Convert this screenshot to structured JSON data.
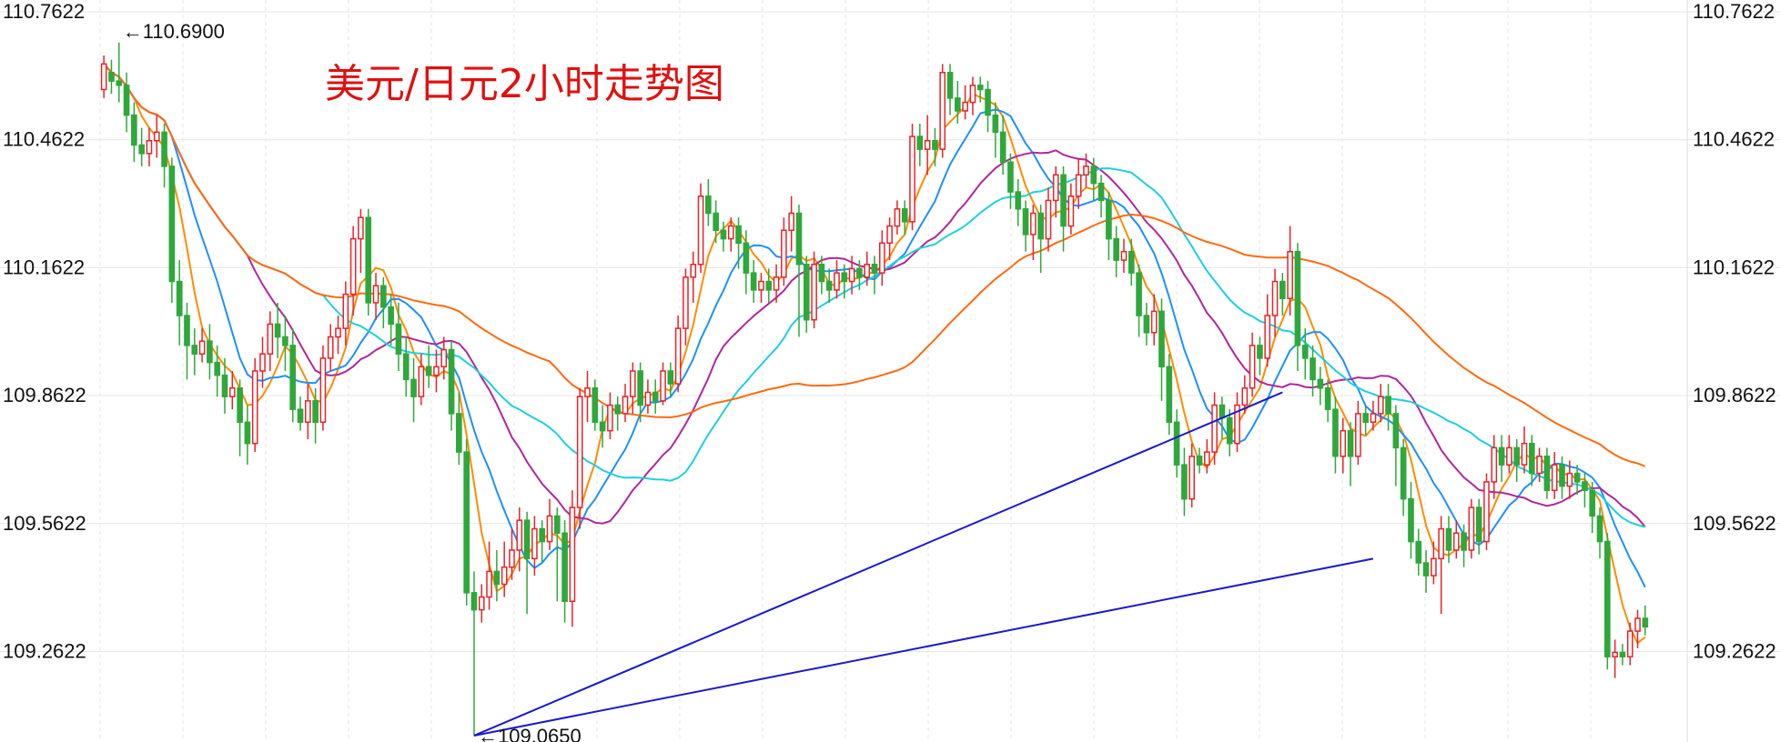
{
  "chart_data": {
    "type": "candlestick",
    "title": "美元/日元2小时走势图",
    "ylim": [
      109.05,
      110.79
    ],
    "y_ticks": [
      "110.7622",
      "110.4622",
      "110.1622",
      "109.8622",
      "109.5622",
      "109.2622"
    ],
    "y_tick_values": [
      110.7622,
      110.4622,
      110.1622,
      109.8622,
      109.5622,
      109.2622
    ],
    "grid": true,
    "annotations": [
      {
        "name": "high",
        "text": "←110.6900",
        "candle": 2,
        "price": 110.69
      },
      {
        "name": "low",
        "text": "←109.0650",
        "candle": 49,
        "price": 109.065
      }
    ],
    "trendlines": [
      {
        "color": "#1a1acc",
        "from": [
          49,
          109.065
        ],
        "to": [
          156,
          109.87
        ]
      },
      {
        "color": "#1a1acc",
        "from": [
          49,
          109.065
        ],
        "to": [
          168,
          109.48
        ]
      }
    ],
    "moving_averages": [
      {
        "period": 5,
        "color": "#ff8c00"
      },
      {
        "period": 10,
        "color": "#1e90ff"
      },
      {
        "period": 20,
        "color": "#b0279b"
      },
      {
        "period": 30,
        "color": "#1fcfdf"
      },
      {
        "period": 60,
        "color": "#ff6a10"
      }
    ],
    "colors": {
      "up": "#e8222a",
      "down": "#2ea83a",
      "grid": "#e6e6e6"
    },
    "candles": [
      [
        110.58,
        110.64,
        110.66,
        110.56
      ],
      [
        110.62,
        110.6,
        110.65,
        110.57
      ],
      [
        110.6,
        110.59,
        110.69,
        110.55
      ],
      [
        110.59,
        110.52,
        110.62,
        110.48
      ],
      [
        110.52,
        110.45,
        110.55,
        110.41
      ],
      [
        110.45,
        110.43,
        110.49,
        110.4
      ],
      [
        110.43,
        110.46,
        110.49,
        110.4
      ],
      [
        110.46,
        110.48,
        110.52,
        110.42
      ],
      [
        110.48,
        110.4,
        110.5,
        110.35
      ],
      [
        110.4,
        110.13,
        110.42,
        110.08
      ],
      [
        110.13,
        110.05,
        110.18,
        109.98
      ],
      [
        110.05,
        109.98,
        110.08,
        109.9
      ],
      [
        109.98,
        109.96,
        110.02,
        109.91
      ],
      [
        109.96,
        109.99,
        110.02,
        109.94
      ],
      [
        109.99,
        109.94,
        110.03,
        109.9
      ],
      [
        109.94,
        109.91,
        109.98,
        109.86
      ],
      [
        109.91,
        109.86,
        109.95,
        109.82
      ],
      [
        109.86,
        109.88,
        109.92,
        109.83
      ],
      [
        109.88,
        109.8,
        109.9,
        109.72
      ],
      [
        109.8,
        109.75,
        109.84,
        109.7
      ],
      [
        109.75,
        109.92,
        109.95,
        109.73
      ],
      [
        109.92,
        109.96,
        110.0,
        109.88
      ],
      [
        109.96,
        110.03,
        110.06,
        109.92
      ],
      [
        110.03,
        110.0,
        110.08,
        109.95
      ],
      [
        110.0,
        109.98,
        110.05,
        109.92
      ],
      [
        109.98,
        109.83,
        110.02,
        109.8
      ],
      [
        109.83,
        109.8,
        109.86,
        109.78
      ],
      [
        109.8,
        109.85,
        109.89,
        109.76
      ],
      [
        109.85,
        109.8,
        109.88,
        109.75
      ],
      [
        109.8,
        109.95,
        109.98,
        109.78
      ],
      [
        109.95,
        110.0,
        110.03,
        109.92
      ],
      [
        110.0,
        110.02,
        110.05,
        109.96
      ],
      [
        110.02,
        110.1,
        110.13,
        109.98
      ],
      [
        110.1,
        110.23,
        110.26,
        110.05
      ],
      [
        110.23,
        110.28,
        110.3,
        110.15
      ],
      [
        110.28,
        110.08,
        110.3,
        110.05
      ],
      [
        110.08,
        110.12,
        110.15,
        110.04
      ],
      [
        110.12,
        110.07,
        110.14,
        110.02
      ],
      [
        110.07,
        110.03,
        110.1,
        109.98
      ],
      [
        110.03,
        109.96,
        110.08,
        109.92
      ],
      [
        109.96,
        109.9,
        110.0,
        109.86
      ],
      [
        109.9,
        109.86,
        109.95,
        109.8
      ],
      [
        109.86,
        109.93,
        109.96,
        109.84
      ],
      [
        109.93,
        109.91,
        109.98,
        109.88
      ],
      [
        109.91,
        109.93,
        109.97,
        109.87
      ],
      [
        109.93,
        109.97,
        110.0,
        109.9
      ],
      [
        109.97,
        109.82,
        109.99,
        109.78
      ],
      [
        109.82,
        109.73,
        109.87,
        109.7
      ],
      [
        109.73,
        109.4,
        109.76,
        109.37
      ],
      [
        109.4,
        109.36,
        109.45,
        109.065
      ],
      [
        109.36,
        109.39,
        109.42,
        109.33
      ],
      [
        109.39,
        109.45,
        109.52,
        109.36
      ],
      [
        109.45,
        109.42,
        109.5,
        109.38
      ],
      [
        109.42,
        109.46,
        109.52,
        109.39
      ],
      [
        109.46,
        109.5,
        109.55,
        109.43
      ],
      [
        109.5,
        109.57,
        109.6,
        109.45
      ],
      [
        109.57,
        109.48,
        109.59,
        109.35
      ],
      [
        109.48,
        109.55,
        109.58,
        109.44
      ],
      [
        109.55,
        109.52,
        109.57,
        109.47
      ],
      [
        109.52,
        109.58,
        109.62,
        109.5
      ],
      [
        109.58,
        109.54,
        109.6,
        109.38
      ],
      [
        109.54,
        109.38,
        109.57,
        109.33
      ],
      [
        109.38,
        109.6,
        109.64,
        109.32
      ],
      [
        109.6,
        109.86,
        109.88,
        109.55
      ],
      [
        109.86,
        109.88,
        109.92,
        109.8
      ],
      [
        109.88,
        109.8,
        109.9,
        109.78
      ],
      [
        109.8,
        109.78,
        109.84,
        109.74
      ],
      [
        109.78,
        109.84,
        109.87,
        109.76
      ],
      [
        109.84,
        109.82,
        109.86,
        109.78
      ],
      [
        109.82,
        109.86,
        109.89,
        109.8
      ],
      [
        109.86,
        109.92,
        109.94,
        109.82
      ],
      [
        109.92,
        109.84,
        109.94,
        109.8
      ],
      [
        109.84,
        109.87,
        109.9,
        109.82
      ],
      [
        109.87,
        109.85,
        109.9,
        109.82
      ],
      [
        109.85,
        109.92,
        109.94,
        109.84
      ],
      [
        109.92,
        109.89,
        109.94,
        109.86
      ],
      [
        109.89,
        110.02,
        110.05,
        109.87
      ],
      [
        110.02,
        110.14,
        110.16,
        109.98
      ],
      [
        110.14,
        110.17,
        110.2,
        110.08
      ],
      [
        110.17,
        110.33,
        110.36,
        110.15
      ],
      [
        110.33,
        110.29,
        110.37,
        110.26
      ],
      [
        110.29,
        110.25,
        110.32,
        110.22
      ],
      [
        110.25,
        110.23,
        110.27,
        110.2
      ],
      [
        110.23,
        110.26,
        110.28,
        110.2
      ],
      [
        110.26,
        110.22,
        110.28,
        110.16
      ],
      [
        110.22,
        110.15,
        110.25,
        110.1
      ],
      [
        110.15,
        110.11,
        110.18,
        110.08
      ],
      [
        110.11,
        110.13,
        110.15,
        110.08
      ],
      [
        110.13,
        110.11,
        110.16,
        110.08
      ],
      [
        110.11,
        110.14,
        110.17,
        110.08
      ],
      [
        110.14,
        110.25,
        110.28,
        110.12
      ],
      [
        110.25,
        110.29,
        110.33,
        110.2
      ],
      [
        110.29,
        110.17,
        110.31,
        110.0
      ],
      [
        110.17,
        110.04,
        110.19,
        110.01
      ],
      [
        110.04,
        110.17,
        110.2,
        110.02
      ],
      [
        110.17,
        110.13,
        110.19,
        110.1
      ],
      [
        110.13,
        110.11,
        110.16,
        110.08
      ],
      [
        110.11,
        110.15,
        110.18,
        110.09
      ],
      [
        110.15,
        110.13,
        110.17,
        110.09
      ],
      [
        110.13,
        110.16,
        110.19,
        110.1
      ],
      [
        110.16,
        110.14,
        110.18,
        110.11
      ],
      [
        110.14,
        110.17,
        110.2,
        110.12
      ],
      [
        110.17,
        110.15,
        110.19,
        110.1
      ],
      [
        110.15,
        110.22,
        110.25,
        110.12
      ],
      [
        110.22,
        110.26,
        110.28,
        110.18
      ],
      [
        110.26,
        110.3,
        110.32,
        110.24
      ],
      [
        110.3,
        110.27,
        110.32,
        110.24
      ],
      [
        110.27,
        110.47,
        110.5,
        110.25
      ],
      [
        110.47,
        110.44,
        110.5,
        110.4
      ],
      [
        110.44,
        110.46,
        110.52,
        110.38
      ],
      [
        110.46,
        110.44,
        110.49,
        110.4
      ],
      [
        110.44,
        110.62,
        110.64,
        110.42
      ],
      [
        110.62,
        110.56,
        110.64,
        110.52
      ],
      [
        110.56,
        110.53,
        110.6,
        110.5
      ],
      [
        110.53,
        110.55,
        110.59,
        110.51
      ],
      [
        110.55,
        110.59,
        110.61,
        110.52
      ],
      [
        110.59,
        110.58,
        110.61,
        110.55
      ],
      [
        110.58,
        110.52,
        110.6,
        110.48
      ],
      [
        110.52,
        110.48,
        110.55,
        110.42
      ],
      [
        110.48,
        110.41,
        110.52,
        110.38
      ],
      [
        110.41,
        110.34,
        110.43,
        110.3
      ],
      [
        110.34,
        110.3,
        110.37,
        110.26
      ],
      [
        110.3,
        110.24,
        110.32,
        110.2
      ],
      [
        110.24,
        110.29,
        110.31,
        110.18
      ],
      [
        110.29,
        110.23,
        110.31,
        110.15
      ],
      [
        110.23,
        110.32,
        110.35,
        110.2
      ],
      [
        110.32,
        110.38,
        110.4,
        110.28
      ],
      [
        110.38,
        110.26,
        110.4,
        110.2
      ],
      [
        110.26,
        110.33,
        110.36,
        110.24
      ],
      [
        110.33,
        110.38,
        110.42,
        110.3
      ],
      [
        110.38,
        110.4,
        110.43,
        110.35
      ],
      [
        110.4,
        110.36,
        110.42,
        110.32
      ],
      [
        110.36,
        110.32,
        110.38,
        110.28
      ],
      [
        110.32,
        110.23,
        110.34,
        110.18
      ],
      [
        110.23,
        110.18,
        110.26,
        110.14
      ],
      [
        110.18,
        110.2,
        110.23,
        110.15
      ],
      [
        110.2,
        110.15,
        110.23,
        110.12
      ],
      [
        110.15,
        110.05,
        110.17,
        110.0
      ],
      [
        110.05,
        110.01,
        110.08,
        109.98
      ],
      [
        110.01,
        110.06,
        110.1,
        109.98
      ],
      [
        110.06,
        109.93,
        110.09,
        109.85
      ],
      [
        109.93,
        109.8,
        109.96,
        109.77
      ],
      [
        109.8,
        109.7,
        109.83,
        109.67
      ],
      [
        109.7,
        109.62,
        109.74,
        109.58
      ],
      [
        109.62,
        109.72,
        109.75,
        109.6
      ],
      [
        109.72,
        109.7,
        109.74,
        109.68
      ],
      [
        109.7,
        109.73,
        109.76,
        109.68
      ],
      [
        109.73,
        109.84,
        109.87,
        109.7
      ],
      [
        109.84,
        109.81,
        109.86,
        109.76
      ],
      [
        109.81,
        109.75,
        109.83,
        109.72
      ],
      [
        109.75,
        109.84,
        109.87,
        109.73
      ],
      [
        109.84,
        109.88,
        109.91,
        109.82
      ],
      [
        109.88,
        109.98,
        110.01,
        109.86
      ],
      [
        109.98,
        109.95,
        110.0,
        109.91
      ],
      [
        109.95,
        110.05,
        110.1,
        109.93
      ],
      [
        110.05,
        110.13,
        110.16,
        110.0
      ],
      [
        110.13,
        110.09,
        110.15,
        110.05
      ],
      [
        110.09,
        110.2,
        110.26,
        110.05
      ],
      [
        110.2,
        109.98,
        110.22,
        109.92
      ],
      [
        109.98,
        109.95,
        110.02,
        109.9
      ],
      [
        109.95,
        109.9,
        109.98,
        109.86
      ],
      [
        109.9,
        109.88,
        109.93,
        109.84
      ],
      [
        109.88,
        109.83,
        109.9,
        109.8
      ],
      [
        109.83,
        109.72,
        109.86,
        109.68
      ],
      [
        109.72,
        109.78,
        109.81,
        109.68
      ],
      [
        109.78,
        109.72,
        109.8,
        109.65
      ],
      [
        109.72,
        109.82,
        109.85,
        109.7
      ],
      [
        109.82,
        109.8,
        109.84,
        109.77
      ],
      [
        109.8,
        109.82,
        109.85,
        109.78
      ],
      [
        109.82,
        109.86,
        109.89,
        109.8
      ],
      [
        109.86,
        109.82,
        109.89,
        109.78
      ],
      [
        109.82,
        109.74,
        109.84,
        109.65
      ],
      [
        109.74,
        109.62,
        109.76,
        109.58
      ],
      [
        109.62,
        109.52,
        109.66,
        109.48
      ],
      [
        109.52,
        109.47,
        109.55,
        109.44
      ],
      [
        109.47,
        109.44,
        109.5,
        109.4
      ],
      [
        109.44,
        109.48,
        109.52,
        109.42
      ],
      [
        109.48,
        109.55,
        109.58,
        109.35
      ],
      [
        109.55,
        109.5,
        109.58,
        109.47
      ],
      [
        109.5,
        109.54,
        109.57,
        109.48
      ],
      [
        109.54,
        109.5,
        109.56,
        109.46
      ],
      [
        109.5,
        109.6,
        109.62,
        109.48
      ],
      [
        109.6,
        109.52,
        109.62,
        109.49
      ],
      [
        109.52,
        109.66,
        109.68,
        109.5
      ],
      [
        109.66,
        109.74,
        109.77,
        109.62
      ],
      [
        109.74,
        109.7,
        109.77,
        109.66
      ],
      [
        109.7,
        109.74,
        109.77,
        109.68
      ],
      [
        109.74,
        109.7,
        109.76,
        109.66
      ],
      [
        109.7,
        109.75,
        109.79,
        109.68
      ],
      [
        109.75,
        109.68,
        109.77,
        109.65
      ],
      [
        109.68,
        109.72,
        109.74,
        109.66
      ],
      [
        109.72,
        109.64,
        109.74,
        109.62
      ],
      [
        109.64,
        109.7,
        109.73,
        109.62
      ],
      [
        109.7,
        109.65,
        109.72,
        109.62
      ],
      [
        109.65,
        109.68,
        109.71,
        109.62
      ],
      [
        109.68,
        109.66,
        109.7,
        109.63
      ],
      [
        109.66,
        109.64,
        109.68,
        109.6
      ],
      [
        109.64,
        109.58,
        109.66,
        109.54
      ],
      [
        109.58,
        109.52,
        109.6,
        109.48
      ],
      [
        109.52,
        109.25,
        109.54,
        109.22
      ],
      [
        109.25,
        109.26,
        109.29,
        109.2
      ],
      [
        109.26,
        109.25,
        109.28,
        109.23
      ],
      [
        109.25,
        109.31,
        109.33,
        109.23
      ],
      [
        109.31,
        109.34,
        109.36,
        109.27
      ],
      [
        109.34,
        109.32,
        109.37,
        109.3
      ]
    ]
  }
}
